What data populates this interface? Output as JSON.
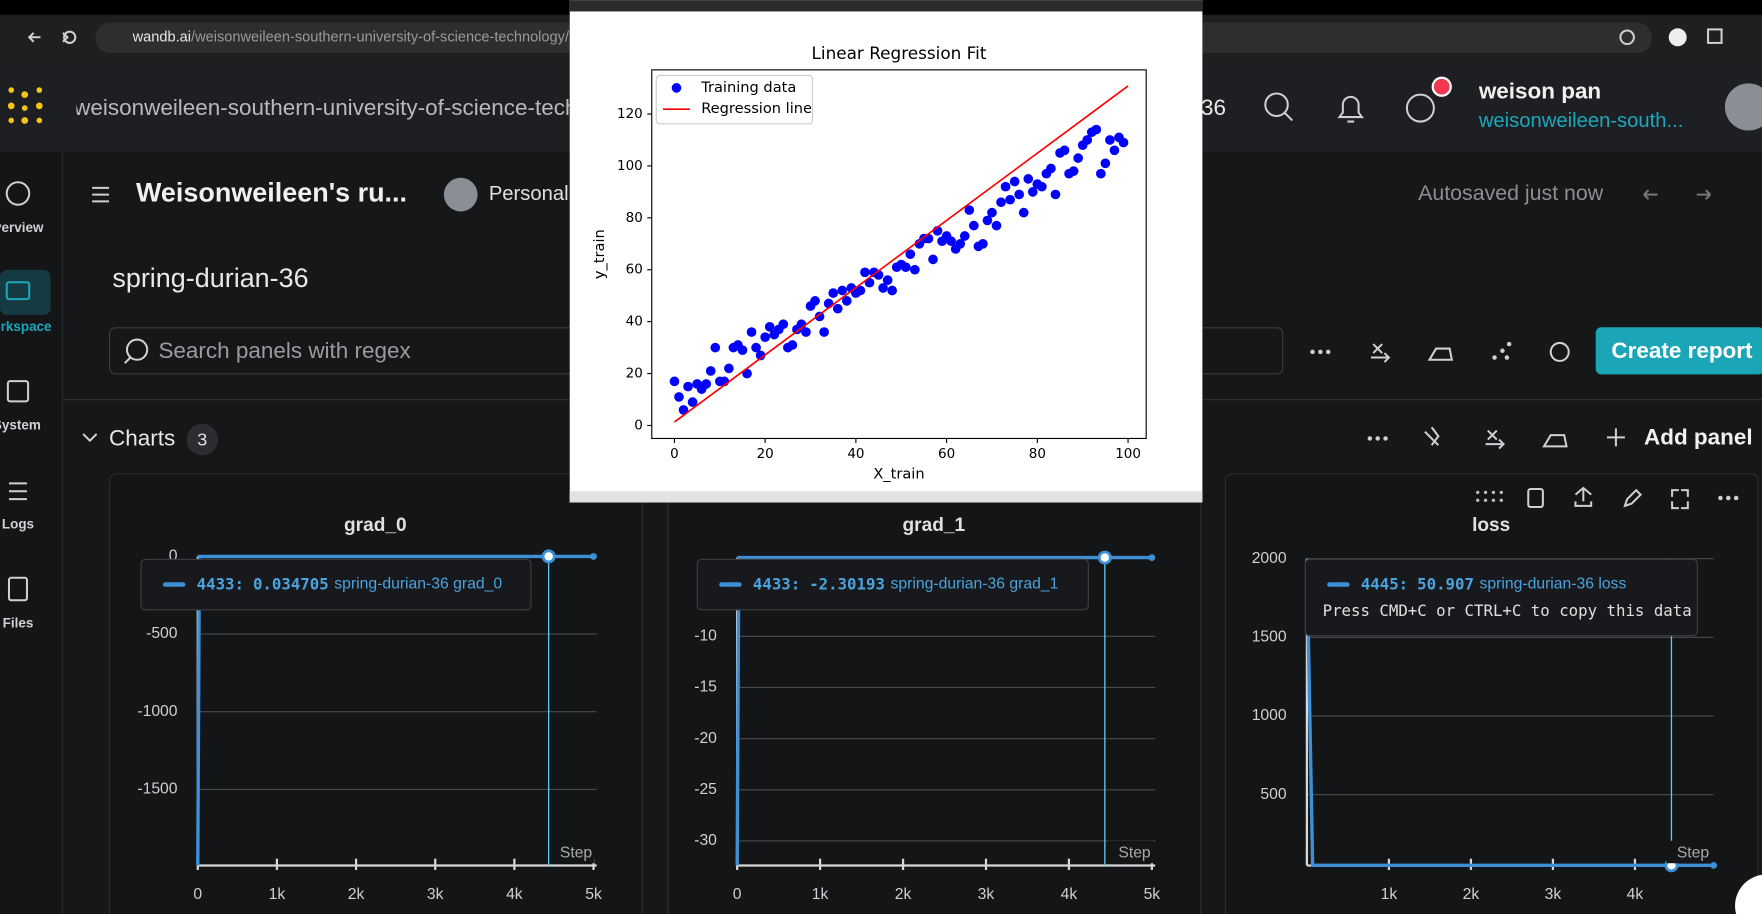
{
  "browser": {
    "url_host": "wandb.ai",
    "url_path": "/weisonweileen-southern-university-of-science-technology/"
  },
  "header": {
    "org": "weisonweileen-southern-university-of-science-technology",
    "run": "spring-durian-36",
    "user_name": "weison pan",
    "user_org": "weisonweileen-south..."
  },
  "sidebar": [
    "Overview",
    "Workspace",
    "System",
    "Logs",
    "Files"
  ],
  "workspace": {
    "title": "Weisonweileen's ru...",
    "visibility": "Personal",
    "status": "Autosaved just now",
    "run_name": "spring-durian-36",
    "search_placeholder": "Search panels with regex",
    "create_button": "Create report",
    "section": "Charts",
    "section_count": 3,
    "add_panel": "Add panel"
  },
  "chart_data": [
    {
      "type": "scatter",
      "title": "Linear Regression Fit",
      "x_label": "X_train",
      "y_label": "y_train",
      "legend": "upper left",
      "xlim": [
        -5,
        104
      ],
      "ylim": [
        -5,
        137
      ],
      "xticks": [
        0,
        20,
        40,
        60,
        80,
        100
      ],
      "yticks": [
        0,
        20,
        40,
        60,
        80,
        100,
        120
      ],
      "series": [
        {
          "name": "Training data",
          "type": "scatter",
          "color": "#0000ff",
          "x": [
            0,
            1,
            2,
            3,
            4,
            5,
            6,
            7,
            8,
            9,
            10,
            11,
            12,
            13,
            14,
            15,
            16,
            17,
            18,
            19,
            20,
            21,
            22,
            23,
            24,
            25,
            26,
            27,
            28,
            29,
            30,
            31,
            32,
            33,
            34,
            35,
            36,
            37,
            38,
            39,
            40,
            41,
            42,
            43,
            44,
            45,
            46,
            47,
            48,
            49,
            50,
            51,
            52,
            53,
            54,
            55,
            56,
            57,
            58,
            59,
            60,
            61,
            62,
            63,
            64,
            65,
            66,
            67,
            68,
            69,
            70,
            71,
            72,
            73,
            74,
            75,
            76,
            77,
            78,
            79,
            80,
            81,
            82,
            83,
            84,
            85,
            86,
            87,
            88,
            89,
            90,
            91,
            92,
            93,
            94,
            95,
            96,
            97,
            98,
            99
          ],
          "values": [
            17,
            11,
            6,
            15,
            9,
            16,
            14,
            16,
            21,
            30,
            17,
            17,
            22,
            30,
            31,
            29,
            20,
            36,
            30,
            27,
            34,
            38,
            35,
            37,
            39,
            30,
            31,
            37,
            39,
            36,
            46,
            48,
            42,
            36,
            47,
            51,
            45,
            52,
            48,
            53,
            51,
            52,
            59,
            55,
            59,
            58,
            53,
            56,
            52,
            61,
            62,
            61,
            66,
            60,
            70,
            72,
            72,
            64,
            75,
            71,
            73,
            71,
            68,
            70,
            73,
            83,
            77,
            69,
            70,
            79,
            82,
            77,
            86,
            92,
            87,
            94,
            89,
            82,
            95,
            90,
            93,
            92,
            97,
            99,
            89,
            105,
            106,
            97,
            98,
            103,
            108,
            110,
            113,
            114,
            97,
            101,
            110,
            106,
            111,
            109
          ]
        },
        {
          "name": "Regression line",
          "type": "line",
          "color": "#ff0000",
          "x": [
            0,
            100
          ],
          "values": [
            1.3,
            130.8
          ]
        }
      ]
    },
    {
      "type": "line",
      "title": "grad_0",
      "x_label": "Step",
      "xlim": [
        0,
        5040
      ],
      "ylim": [
        -1990,
        0
      ],
      "xticks": [
        0,
        {
          "value": 1000,
          "label": "1k"
        },
        {
          "value": 2000,
          "label": "2k"
        },
        {
          "value": 3000,
          "label": "3k"
        },
        {
          "value": 4000,
          "label": "4k"
        },
        {
          "value": 5000,
          "label": "5k"
        }
      ],
      "yticks": [
        -1500,
        -1000,
        -500,
        0
      ],
      "series": [
        {
          "name": "spring-durian-36 grad_0",
          "color": "#3d8fd6",
          "x": [
            0,
            20,
            5000
          ],
          "values": [
            -1990,
            0.03,
            0.03
          ]
        }
      ],
      "hover": {
        "step": {
          "value": 4433,
          "label": "4433:"
        },
        "value": 0.034705
      }
    },
    {
      "type": "line",
      "title": "grad_1",
      "x_label": "Step",
      "xlim": [
        0,
        5040
      ],
      "ylim": [
        -32.4,
        -2.3
      ],
      "xticks": [
        0,
        {
          "value": 1000,
          "label": "1k"
        },
        {
          "value": 2000,
          "label": "2k"
        },
        {
          "value": 3000,
          "label": "3k"
        },
        {
          "value": 4000,
          "label": "4k"
        },
        {
          "value": 5000,
          "label": "5k"
        }
      ],
      "yticks": [
        -30,
        -25,
        -20,
        -15,
        -10
      ],
      "series": [
        {
          "name": "spring-durian-36 grad_1",
          "color": "#3d8fd6",
          "x": [
            0,
            20,
            5000
          ],
          "values": [
            -32.4,
            -2.3,
            -2.3
          ]
        }
      ],
      "hover": {
        "step": {
          "value": 4433,
          "label": "4433:"
        },
        "value": -2.30193
      }
    },
    {
      "type": "line",
      "title": "loss",
      "x_label": "Step",
      "xlim": [
        0,
        4960
      ],
      "ylim": [
        50,
        2000
      ],
      "xticks": [
        {
          "value": 1000,
          "label": "1k"
        },
        {
          "value": 2000,
          "label": "2k"
        },
        {
          "value": 3000,
          "label": "3k"
        },
        {
          "value": 4000,
          "label": "4k"
        }
      ],
      "yticks": [
        500,
        1000,
        1500,
        2000
      ],
      "series": [
        {
          "name": "spring-durian-36 loss",
          "color": "#3d8fd6",
          "x": [
            0,
            70,
            4960
          ],
          "values": [
            2000,
            51,
            50.9
          ]
        }
      ],
      "hover": {
        "step": {
          "value": 4445,
          "label": "4445:"
        },
        "value": 50.907,
        "note": "Press CMD+C or CTRL+C to copy this data"
      }
    }
  ]
}
